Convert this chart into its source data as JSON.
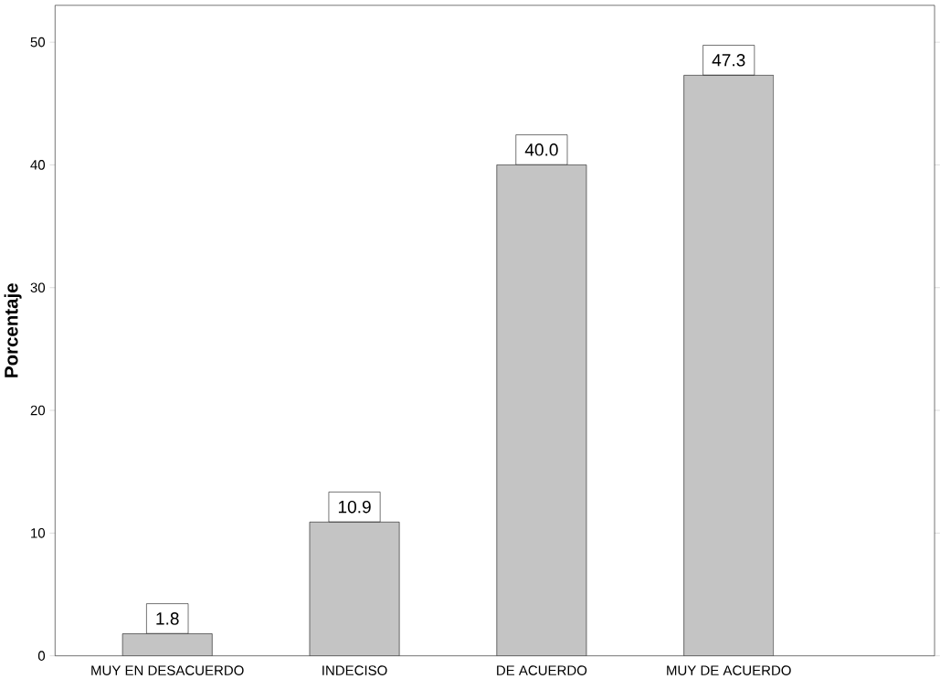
{
  "chart_data": {
    "type": "bar",
    "ylabel": "Porcentaje",
    "categories": [
      "MUY EN DESACUERDO",
      "INDECISO",
      "DE ACUERDO",
      "MUY DE ACUERDO"
    ],
    "values": [
      1.8,
      10.9,
      40.0,
      47.3
    ],
    "value_labels": [
      "1.8",
      "10.9",
      "40.0",
      "47.3"
    ],
    "color": "#c4c4c4",
    "ylim": [
      0,
      53
    ],
    "yticks": [
      0,
      10,
      20,
      30,
      40,
      50
    ],
    "grid": false
  }
}
